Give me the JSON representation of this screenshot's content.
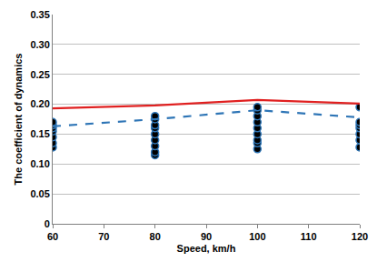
{
  "chart_data": {
    "type": "line",
    "x_label": "Speed, km/h",
    "y_label": "The coefficient of dynamics",
    "xlim": [
      60,
      120
    ],
    "xticks": [
      60,
      70,
      80,
      90,
      100,
      110,
      120
    ],
    "ylim": [
      0,
      0.35
    ],
    "yticks": [
      0,
      0.05,
      {
        "value": 0.1,
        "label": "0.10"
      },
      0.15,
      {
        "value": 0.2,
        "label": "0.20"
      },
      0.25,
      {
        "value": 0.3,
        "label": "0.30"
      },
      0.35
    ],
    "grid": true,
    "series": [
      {
        "type": "scatter",
        "marker": "circle",
        "color": "#000000",
        "x": [
          60,
          60,
          60,
          60,
          60,
          60,
          60,
          80,
          80,
          80,
          80,
          80,
          80,
          80,
          80,
          80,
          100,
          100,
          100,
          100,
          100,
          100,
          100,
          100,
          100,
          120,
          120,
          120,
          120,
          120,
          120,
          120
        ],
        "values": [
          0.128,
          0.135,
          0.145,
          0.155,
          0.16,
          0.165,
          0.17,
          0.115,
          0.12,
          0.13,
          0.14,
          0.15,
          0.16,
          0.165,
          0.175,
          0.18,
          0.125,
          0.135,
          0.14,
          0.15,
          0.16,
          0.17,
          0.18,
          0.19,
          0.195,
          0.128,
          0.14,
          0.15,
          0.16,
          0.165,
          0.17,
          0.195
        ]
      },
      {
        "type": "line",
        "line_style": "solid",
        "color": "#e02020",
        "x": [
          60,
          80,
          100,
          120
        ],
        "values": [
          0.193,
          0.198,
          0.207,
          0.201
        ]
      },
      {
        "type": "line",
        "line_style": "dash",
        "color": "#2e75b6",
        "x": [
          60,
          80,
          100,
          120
        ],
        "values": [
          0.163,
          0.175,
          0.19,
          0.178
        ]
      }
    ]
  }
}
